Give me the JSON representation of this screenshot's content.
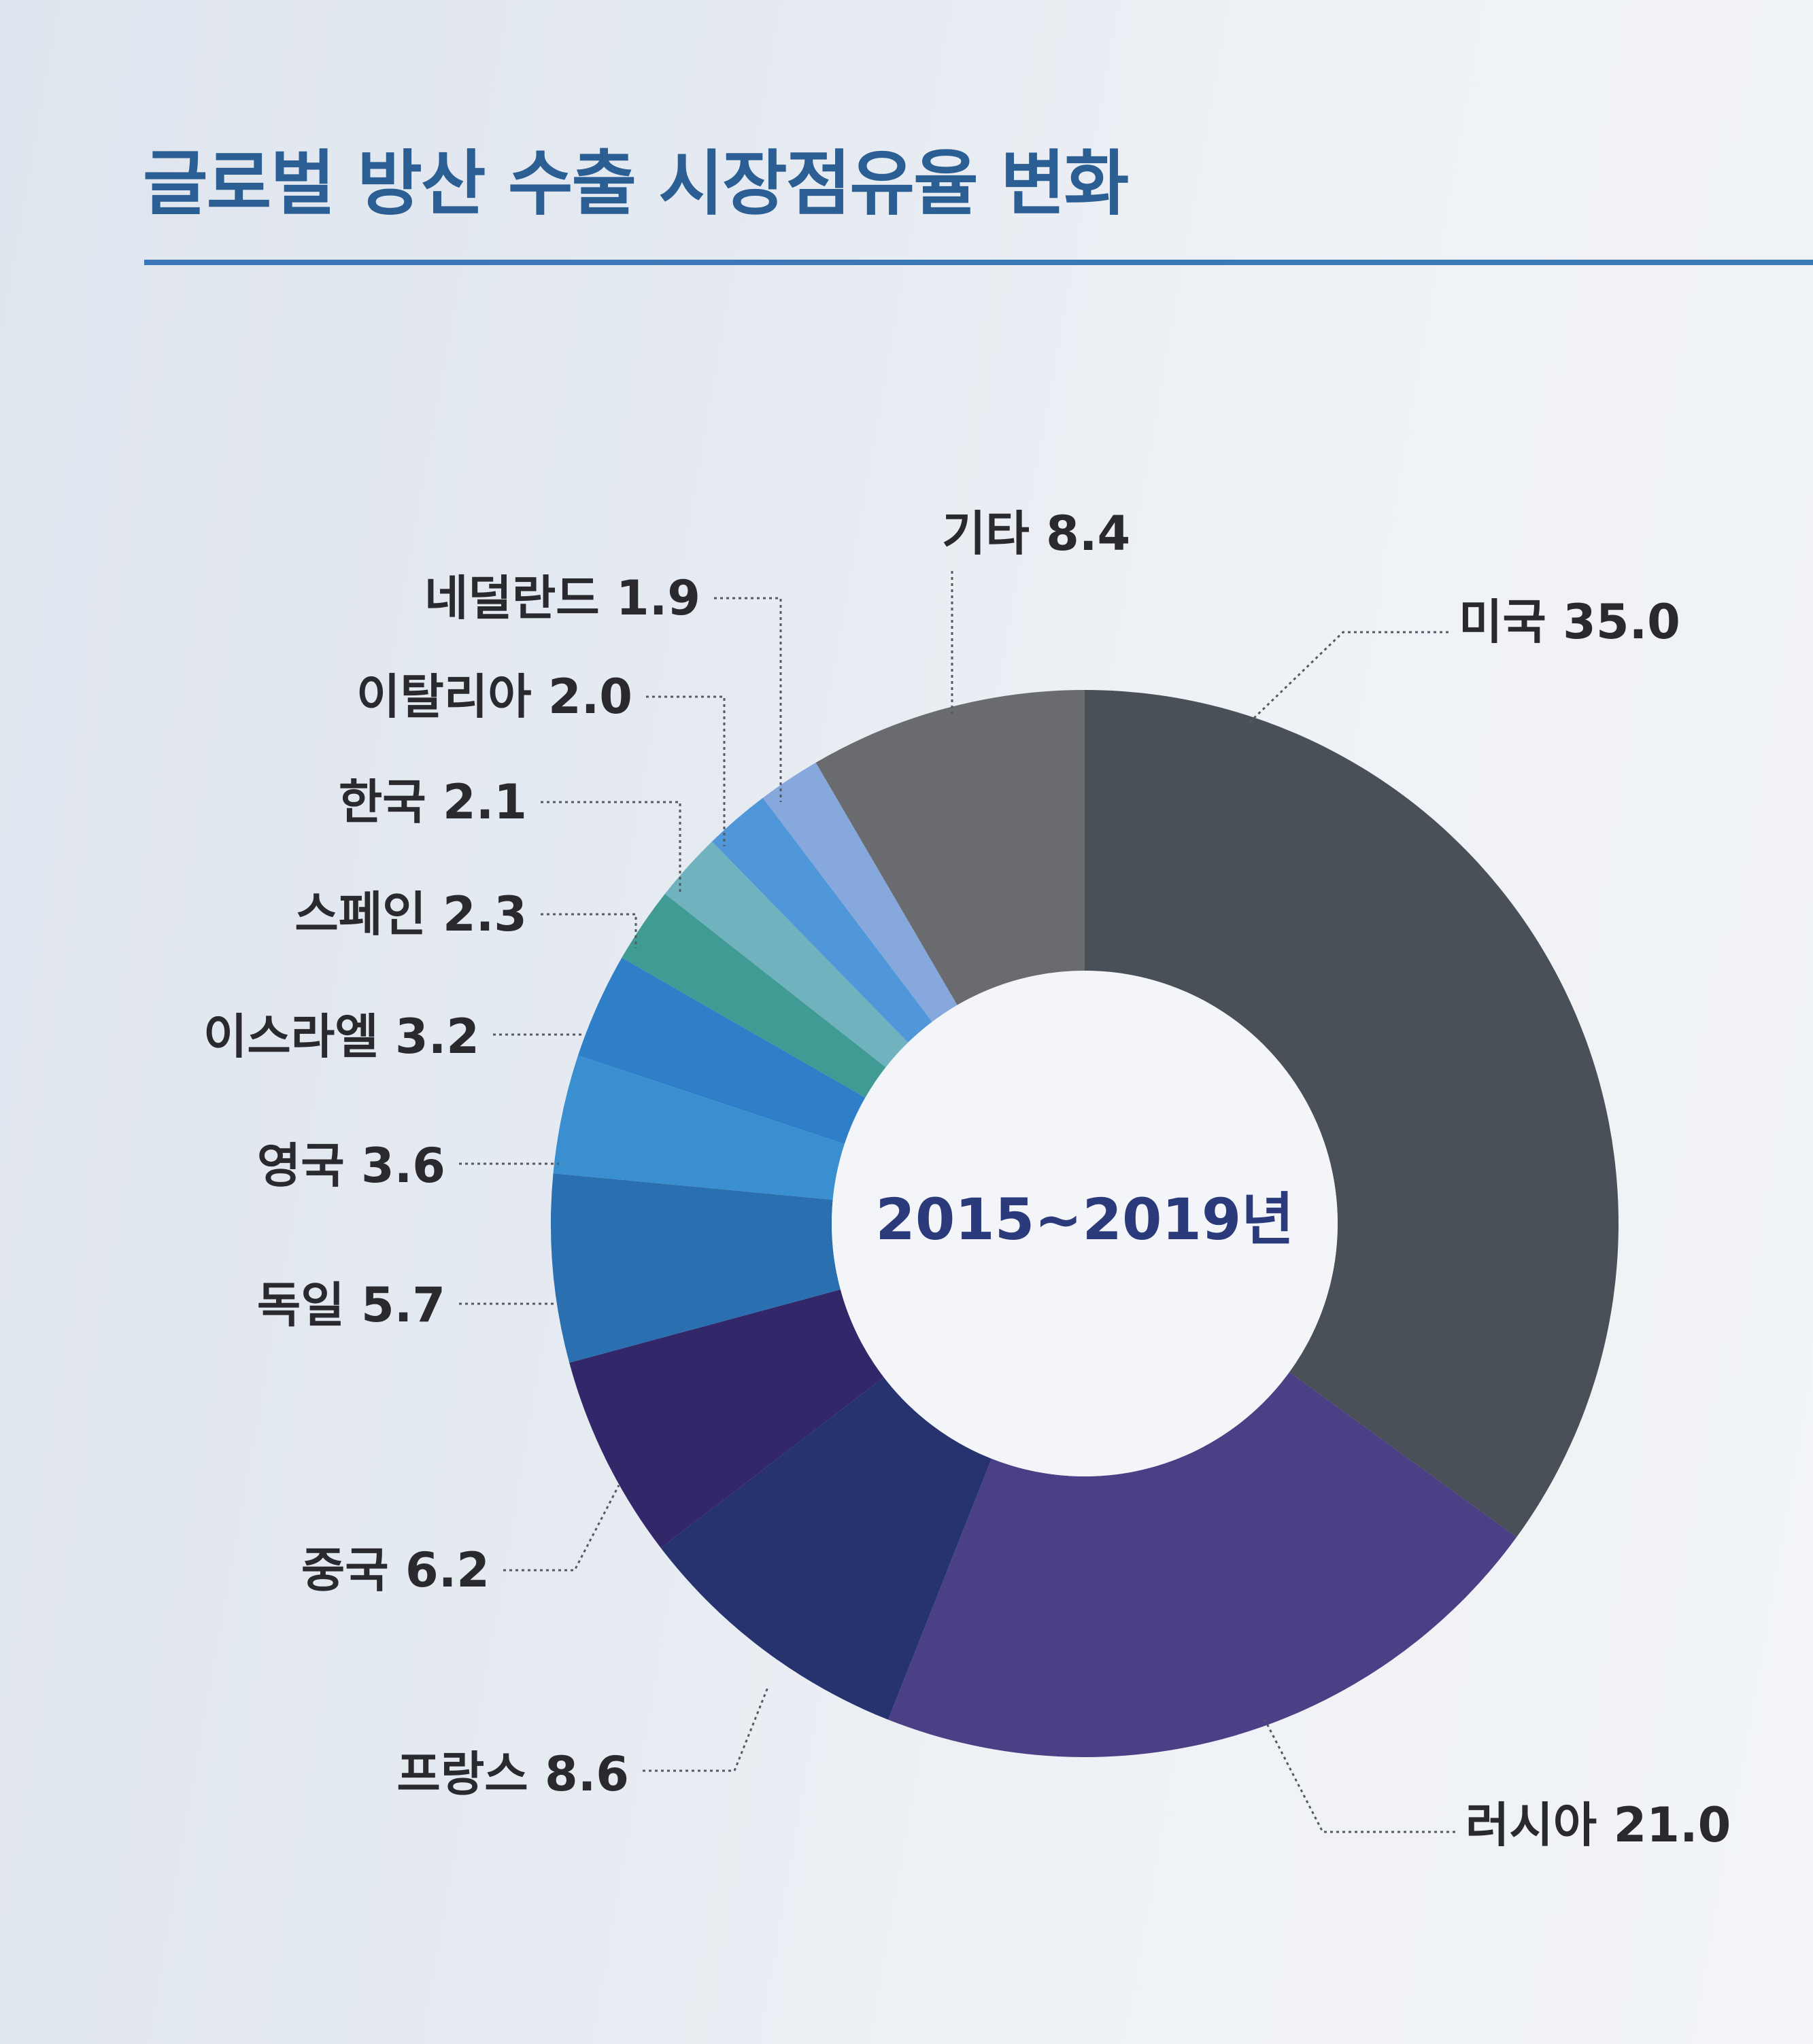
{
  "title": "글로벌 방산 수출 시장점유율 변화",
  "chart_data": {
    "type": "pie",
    "donut": true,
    "center_label": "2015~2019년",
    "start_angle_deg": 0,
    "direction": "clockwise",
    "slices": [
      {
        "label": "미국",
        "value": 35.0,
        "display": "미국 35.0",
        "color": "#4a5058"
      },
      {
        "label": "러시아",
        "value": 21.0,
        "display": "러시아 21.0",
        "color": "#4b3f85"
      },
      {
        "label": "프랑스",
        "value": 8.6,
        "display": "프랑스 8.6",
        "color": "#26336f"
      },
      {
        "label": "중국",
        "value": 6.2,
        "display": "중국 6.2",
        "color": "#322768"
      },
      {
        "label": "독일",
        "value": 5.7,
        "display": "독일 5.7",
        "color": "#2a6fb0"
      },
      {
        "label": "영국",
        "value": 3.6,
        "display": "영국 3.6",
        "color": "#3a8fd0"
      },
      {
        "label": "이스라엘",
        "value": 3.2,
        "display": "이스라엘 3.2",
        "color": "#2f7fc8"
      },
      {
        "label": "스페인",
        "value": 2.3,
        "display": "스페인 2.3",
        "color": "#3f9b93"
      },
      {
        "label": "한국",
        "value": 2.1,
        "display": "한국 2.1",
        "color": "#70b2bd"
      },
      {
        "label": "이탈리아",
        "value": 2.0,
        "display": "이탈리아 2.0",
        "color": "#4f97d9"
      },
      {
        "label": "네덜란드",
        "value": 1.9,
        "display": "네덜란드 1.9",
        "color": "#86a8dd"
      },
      {
        "label": "기타",
        "value": 8.4,
        "display": "기타 8.4",
        "color": "#6a6b6e"
      }
    ]
  }
}
